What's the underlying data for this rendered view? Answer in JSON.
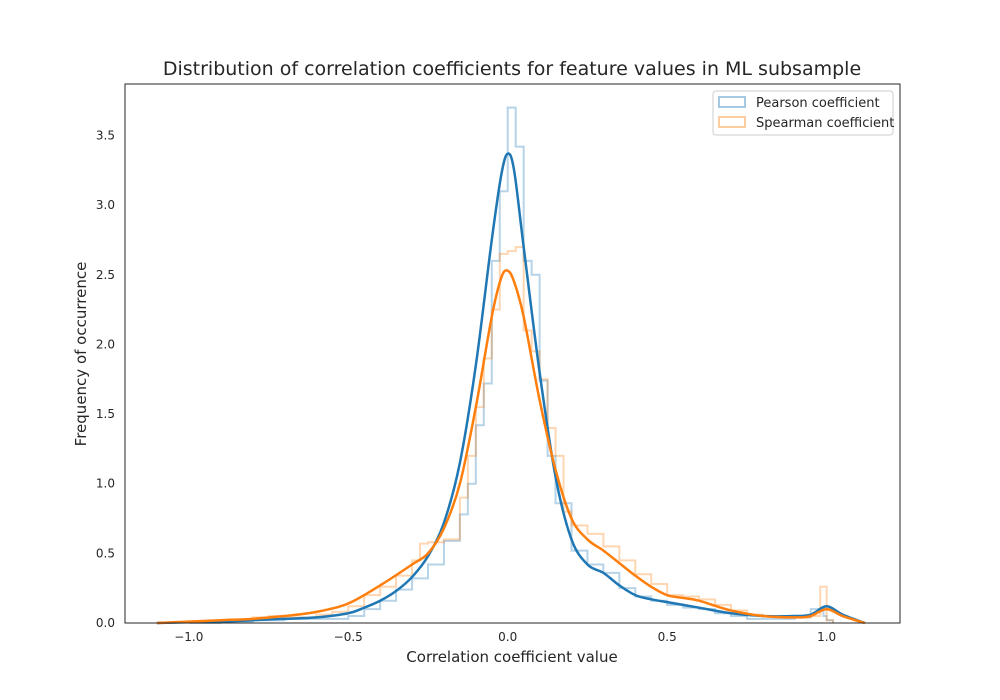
{
  "chart_data": {
    "type": "histogram",
    "title": "Distribution of correlation coefficients for feature values in ML subsample",
    "xlabel": "Correlation coefficient value",
    "ylabel": "Frequency of occurrence",
    "xlim": [
      -1.2,
      1.23
    ],
    "ylim": [
      0,
      3.87
    ],
    "xticks": [
      -1.0,
      -0.5,
      0.0,
      0.5,
      1.0
    ],
    "xtick_labels": [
      "−1.0",
      "−0.5",
      "0.0",
      "0.5",
      "1.0"
    ],
    "yticks": [
      0.0,
      0.5,
      1.0,
      1.5,
      2.0,
      2.5,
      3.0,
      3.5
    ],
    "ytick_labels": [
      "0.0",
      "0.5",
      "1.0",
      "1.5",
      "2.0",
      "2.5",
      "3.0",
      "3.5"
    ],
    "grid": false,
    "legend": "top-right",
    "series": [
      {
        "name": "Pearson coefficient",
        "color": "#1f77b4",
        "hist_bins": [
          [
            -1.0,
            0.0
          ],
          [
            -0.9,
            0.01
          ],
          [
            -0.8,
            0.02
          ],
          [
            -0.7,
            0.03
          ],
          [
            -0.6,
            0.03
          ],
          [
            -0.5,
            0.05
          ],
          [
            -0.45,
            0.1
          ],
          [
            -0.4,
            0.16
          ],
          [
            -0.35,
            0.24
          ],
          [
            -0.3,
            0.32
          ],
          [
            -0.25,
            0.42
          ],
          [
            -0.2,
            0.59
          ],
          [
            -0.15,
            0.78
          ],
          [
            -0.125,
            1.0
          ],
          [
            -0.1,
            1.42
          ],
          [
            -0.075,
            1.72
          ],
          [
            -0.05,
            2.6
          ],
          [
            -0.025,
            3.1
          ],
          [
            0.0,
            3.7
          ],
          [
            0.025,
            3.42
          ],
          [
            0.05,
            2.6
          ],
          [
            0.075,
            2.5
          ],
          [
            0.1,
            1.74
          ],
          [
            0.125,
            1.2
          ],
          [
            0.15,
            0.86
          ],
          [
            0.2,
            0.52
          ],
          [
            0.25,
            0.42
          ],
          [
            0.3,
            0.36
          ],
          [
            0.35,
            0.25
          ],
          [
            0.4,
            0.19
          ],
          [
            0.45,
            0.16
          ],
          [
            0.5,
            0.13
          ],
          [
            0.55,
            0.11
          ],
          [
            0.6,
            0.1
          ],
          [
            0.65,
            0.07
          ],
          [
            0.7,
            0.05
          ],
          [
            0.75,
            0.03
          ],
          [
            0.8,
            0.03
          ],
          [
            0.85,
            0.03
          ],
          [
            0.9,
            0.04
          ],
          [
            0.95,
            0.1
          ],
          [
            0.99,
            0.05
          ],
          [
            1.0,
            0.02
          ]
        ],
        "kde_x": [
          -1.1,
          -1.0,
          -0.9,
          -0.8,
          -0.7,
          -0.6,
          -0.5,
          -0.45,
          -0.4,
          -0.35,
          -0.3,
          -0.25,
          -0.2,
          -0.15,
          -0.1,
          -0.05,
          -0.02,
          0.0,
          0.02,
          0.05,
          0.1,
          0.15,
          0.2,
          0.25,
          0.3,
          0.35,
          0.4,
          0.45,
          0.5,
          0.55,
          0.6,
          0.7,
          0.8,
          0.9,
          0.95,
          1.0,
          1.05,
          1.12
        ],
        "kde_y": [
          0.0,
          0.005,
          0.01,
          0.02,
          0.03,
          0.04,
          0.07,
          0.11,
          0.16,
          0.23,
          0.33,
          0.48,
          0.72,
          1.15,
          1.85,
          2.75,
          3.22,
          3.37,
          3.25,
          2.7,
          1.8,
          1.05,
          0.6,
          0.42,
          0.36,
          0.27,
          0.2,
          0.17,
          0.15,
          0.13,
          0.11,
          0.07,
          0.05,
          0.05,
          0.06,
          0.12,
          0.06,
          0.0
        ]
      },
      {
        "name": "Spearman coefficient",
        "color": "#ff7f0e",
        "hist_bins": [
          [
            -1.0,
            0.01
          ],
          [
            -0.9,
            0.02
          ],
          [
            -0.8,
            0.04
          ],
          [
            -0.75,
            0.05
          ],
          [
            -0.7,
            0.04
          ],
          [
            -0.6,
            0.06
          ],
          [
            -0.55,
            0.08
          ],
          [
            -0.5,
            0.12
          ],
          [
            -0.45,
            0.2
          ],
          [
            -0.4,
            0.26
          ],
          [
            -0.35,
            0.34
          ],
          [
            -0.3,
            0.45
          ],
          [
            -0.275,
            0.57
          ],
          [
            -0.25,
            0.58
          ],
          [
            -0.2,
            0.6
          ],
          [
            -0.15,
            0.9
          ],
          [
            -0.125,
            1.2
          ],
          [
            -0.1,
            1.55
          ],
          [
            -0.075,
            1.9
          ],
          [
            -0.05,
            2.25
          ],
          [
            -0.025,
            2.65
          ],
          [
            0.0,
            2.67
          ],
          [
            0.025,
            2.7
          ],
          [
            0.05,
            2.1
          ],
          [
            0.075,
            1.95
          ],
          [
            0.1,
            1.75
          ],
          [
            0.125,
            1.4
          ],
          [
            0.15,
            1.2
          ],
          [
            0.175,
            0.8
          ],
          [
            0.2,
            0.7
          ],
          [
            0.25,
            0.64
          ],
          [
            0.3,
            0.55
          ],
          [
            0.35,
            0.45
          ],
          [
            0.4,
            0.35
          ],
          [
            0.45,
            0.28
          ],
          [
            0.5,
            0.2
          ],
          [
            0.55,
            0.19
          ],
          [
            0.6,
            0.17
          ],
          [
            0.65,
            0.13
          ],
          [
            0.7,
            0.09
          ],
          [
            0.75,
            0.06
          ],
          [
            0.8,
            0.05
          ],
          [
            0.85,
            0.04
          ],
          [
            0.9,
            0.04
          ],
          [
            0.95,
            0.05
          ],
          [
            0.98,
            0.26
          ],
          [
            1.0,
            0.02
          ]
        ],
        "kde_x": [
          -1.1,
          -1.0,
          -0.9,
          -0.8,
          -0.7,
          -0.6,
          -0.5,
          -0.4,
          -0.3,
          -0.25,
          -0.2,
          -0.15,
          -0.1,
          -0.05,
          -0.02,
          0.0,
          0.02,
          0.05,
          0.1,
          0.15,
          0.2,
          0.25,
          0.3,
          0.35,
          0.4,
          0.45,
          0.5,
          0.55,
          0.6,
          0.7,
          0.8,
          0.9,
          0.95,
          1.0,
          1.05,
          1.12
        ],
        "kde_y": [
          0.0,
          0.01,
          0.02,
          0.03,
          0.05,
          0.08,
          0.14,
          0.27,
          0.42,
          0.5,
          0.68,
          1.0,
          1.55,
          2.2,
          2.48,
          2.53,
          2.45,
          2.2,
          1.6,
          1.1,
          0.75,
          0.6,
          0.52,
          0.43,
          0.34,
          0.26,
          0.2,
          0.18,
          0.16,
          0.09,
          0.05,
          0.04,
          0.05,
          0.1,
          0.05,
          0.0
        ]
      }
    ]
  }
}
